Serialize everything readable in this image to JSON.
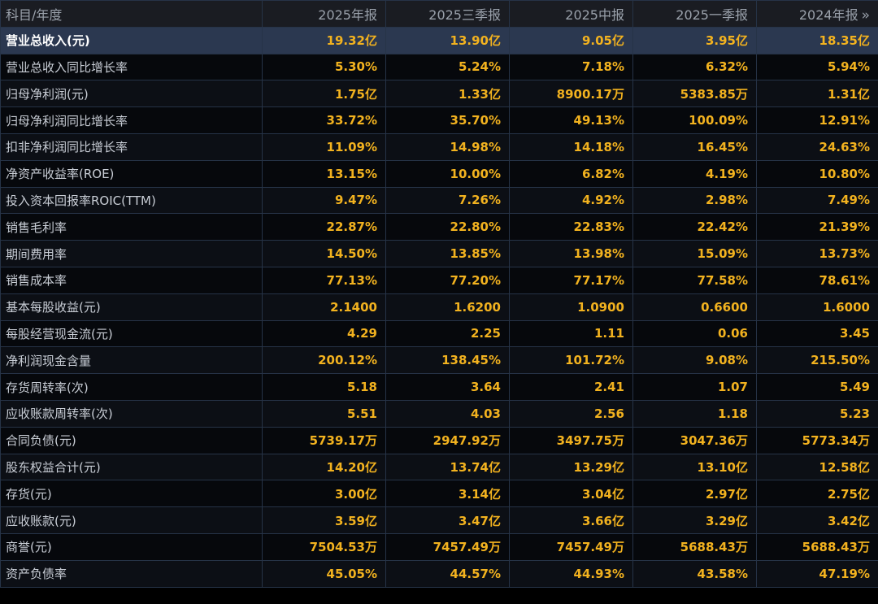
{
  "header": {
    "label": "科目/年度",
    "periods": [
      "2025年报",
      "2025三季报",
      "2025中报",
      "2025一季报",
      "2024年报"
    ],
    "more_glyph": "»"
  },
  "selected_row": 0,
  "rows": [
    {
      "label": "营业总收入(元)",
      "values": [
        "19.32亿",
        "13.90亿",
        "9.05亿",
        "3.95亿",
        "18.35亿"
      ]
    },
    {
      "label": "营业总收入同比增长率",
      "values": [
        "5.30%",
        "5.24%",
        "7.18%",
        "6.32%",
        "5.94%"
      ]
    },
    {
      "label": "归母净利润(元)",
      "values": [
        "1.75亿",
        "1.33亿",
        "8900.17万",
        "5383.85万",
        "1.31亿"
      ]
    },
    {
      "label": "归母净利润同比增长率",
      "values": [
        "33.72%",
        "35.70%",
        "49.13%",
        "100.09%",
        "12.91%"
      ]
    },
    {
      "label": "扣非净利润同比增长率",
      "values": [
        "11.09%",
        "14.98%",
        "14.18%",
        "16.45%",
        "24.63%"
      ]
    },
    {
      "label": "净资产收益率(ROE)",
      "values": [
        "13.15%",
        "10.00%",
        "6.82%",
        "4.19%",
        "10.80%"
      ]
    },
    {
      "label": "投入资本回报率ROIC(TTM)",
      "values": [
        "9.47%",
        "7.26%",
        "4.92%",
        "2.98%",
        "7.49%"
      ]
    },
    {
      "label": "销售毛利率",
      "values": [
        "22.87%",
        "22.80%",
        "22.83%",
        "22.42%",
        "21.39%"
      ]
    },
    {
      "label": "期间费用率",
      "values": [
        "14.50%",
        "13.85%",
        "13.98%",
        "15.09%",
        "13.73%"
      ]
    },
    {
      "label": "销售成本率",
      "values": [
        "77.13%",
        "77.20%",
        "77.17%",
        "77.58%",
        "78.61%"
      ]
    },
    {
      "label": "基本每股收益(元)",
      "values": [
        "2.1400",
        "1.6200",
        "1.0900",
        "0.6600",
        "1.6000"
      ]
    },
    {
      "label": "每股经营现金流(元)",
      "values": [
        "4.29",
        "2.25",
        "1.11",
        "0.06",
        "3.45"
      ]
    },
    {
      "label": "净利润现金含量",
      "values": [
        "200.12%",
        "138.45%",
        "101.72%",
        "9.08%",
        "215.50%"
      ]
    },
    {
      "label": "存货周转率(次)",
      "values": [
        "5.18",
        "3.64",
        "2.41",
        "1.07",
        "5.49"
      ]
    },
    {
      "label": "应收账款周转率(次)",
      "values": [
        "5.51",
        "4.03",
        "2.56",
        "1.18",
        "5.23"
      ]
    },
    {
      "label": "合同负债(元)",
      "values": [
        "5739.17万",
        "2947.92万",
        "3497.75万",
        "3047.36万",
        "5773.34万"
      ]
    },
    {
      "label": "股东权益合计(元)",
      "values": [
        "14.20亿",
        "13.74亿",
        "13.29亿",
        "13.10亿",
        "12.58亿"
      ]
    },
    {
      "label": "存货(元)",
      "values": [
        "3.00亿",
        "3.14亿",
        "3.04亿",
        "2.97亿",
        "2.75亿"
      ]
    },
    {
      "label": "应收账款(元)",
      "values": [
        "3.59亿",
        "3.47亿",
        "3.66亿",
        "3.29亿",
        "3.42亿"
      ]
    },
    {
      "label": "商誉(元)",
      "values": [
        "7504.53万",
        "7457.49万",
        "7457.49万",
        "5688.43万",
        "5688.43万"
      ]
    },
    {
      "label": "资产负债率",
      "values": [
        "45.05%",
        "44.57%",
        "44.93%",
        "43.58%",
        "47.19%"
      ]
    }
  ],
  "colors": {
    "background": "#000000",
    "header_bg": "#1a1c22",
    "header_text": "#9aa1ab",
    "value_text": "#f2b21f",
    "label_text": "#c9ced6",
    "selected_row_bg": "#2b3850",
    "grid_line": "#263347"
  }
}
